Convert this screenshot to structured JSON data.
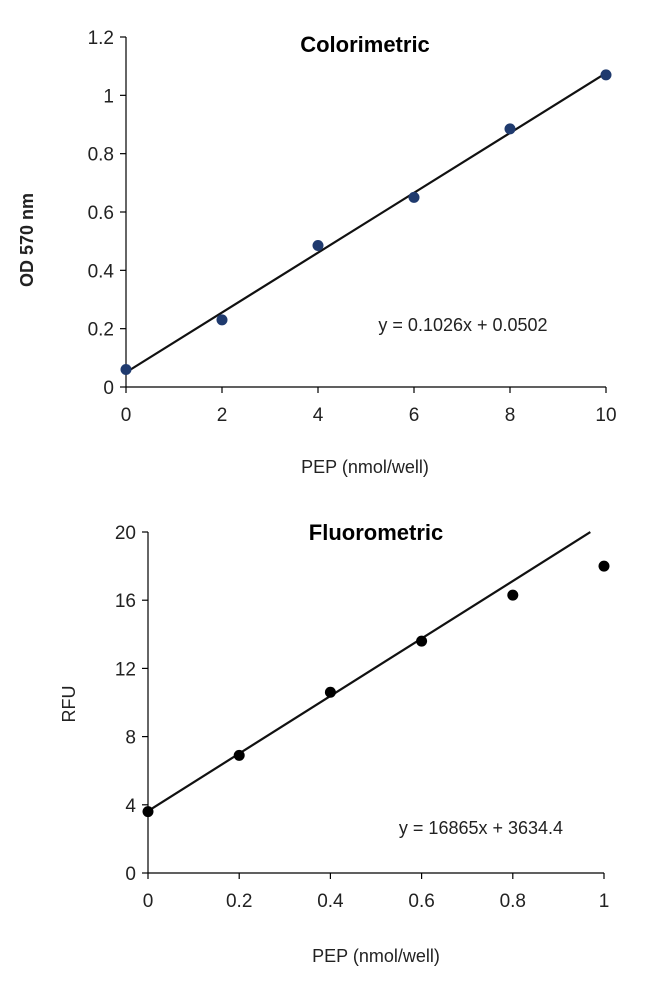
{
  "chart_data": [
    {
      "type": "scatter",
      "title": "Colorimetric",
      "xlabel": "PEP  (nmol/well)",
      "ylabel": "OD 570 nm",
      "xlim": [
        0,
        10
      ],
      "ylim": [
        0,
        1.2
      ],
      "x_ticks": [
        "0",
        "2",
        "4",
        "6",
        "8",
        "10"
      ],
      "y_ticks": [
        "0",
        "0.2",
        "0.4",
        "0.6",
        "0.8",
        "1",
        "1.2"
      ],
      "grid": false,
      "marker_color": "#1f3a6e",
      "series": [
        {
          "x": [
            0,
            2,
            4,
            6,
            8,
            10
          ],
          "values": [
            0.06,
            0.23,
            0.485,
            0.65,
            0.885,
            1.07
          ]
        }
      ],
      "trendline": {
        "slope": 0.1026,
        "intercept": 0.0502,
        "x_range": [
          0,
          10
        ]
      },
      "equation": "y = 0.1026x + 0.0502"
    },
    {
      "type": "scatter",
      "title": "Fluorometric",
      "xlabel": "PEP (nmol/well)",
      "ylabel": "RFU",
      "xlim": [
        0,
        1
      ],
      "ylim": [
        0,
        20
      ],
      "x_ticks": [
        "0",
        "0.2",
        "0.4",
        "0.6",
        "0.8",
        "1"
      ],
      "y_ticks": [
        "0",
        "4",
        "8",
        "12",
        "16",
        "20"
      ],
      "grid": false,
      "marker_color": "#000000",
      "series": [
        {
          "x": [
            0,
            0.2,
            0.4,
            0.6,
            0.8,
            1
          ],
          "values": [
            3.6,
            6.9,
            10.6,
            13.6,
            16.3,
            18.0
          ]
        }
      ],
      "trendline": {
        "slope": 16.865,
        "intercept": 3.6344,
        "x_range": [
          0,
          0.97
        ]
      },
      "equation": "y = 16865x + 3634.4"
    }
  ]
}
